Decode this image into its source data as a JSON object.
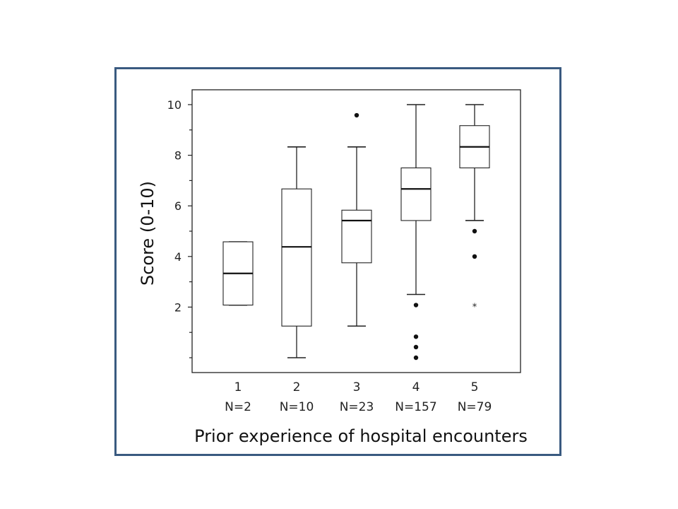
{
  "chart_data": {
    "type": "boxplot",
    "title": "",
    "xlabel": "Prior experience of hospital encounters",
    "ylabel": "Score (0-10)",
    "ylim": [
      -0.5,
      10.5
    ],
    "yticks": [
      2,
      4,
      6,
      8,
      10
    ],
    "y_minor_ticks": [
      0,
      1,
      3,
      5,
      7,
      9
    ],
    "grid": false,
    "categories": [
      "1",
      "2",
      "3",
      "4",
      "5"
    ],
    "n_labels": [
      "N=2",
      "N=10",
      "N=23",
      "N=157",
      "N=79"
    ],
    "boxes": [
      {
        "category": "1",
        "n": 2,
        "q1": 2.08,
        "median": 3.33,
        "q3": 4.58,
        "whisker_low": 2.08,
        "whisker_high": 4.58,
        "outliers": [],
        "extremes": []
      },
      {
        "category": "2",
        "n": 10,
        "q1": 1.25,
        "median": 4.38,
        "q3": 6.67,
        "whisker_low": 0.0,
        "whisker_high": 8.33,
        "outliers": [],
        "extremes": []
      },
      {
        "category": "3",
        "n": 23,
        "q1": 3.75,
        "median": 5.42,
        "q3": 5.83,
        "whisker_low": 1.25,
        "whisker_high": 8.33,
        "outliers": [
          9.58
        ],
        "extremes": []
      },
      {
        "category": "4",
        "n": 157,
        "q1": 5.42,
        "median": 6.67,
        "q3": 7.5,
        "whisker_low": 2.5,
        "whisker_high": 10.0,
        "outliers": [
          2.08,
          0.83,
          0.42,
          0.0
        ],
        "extremes": []
      },
      {
        "category": "5",
        "n": 79,
        "q1": 7.5,
        "median": 8.33,
        "q3": 9.17,
        "whisker_low": 5.42,
        "whisker_high": 10.0,
        "outliers": [
          5.0,
          4.0
        ],
        "extremes": [
          2.08
        ]
      }
    ]
  }
}
